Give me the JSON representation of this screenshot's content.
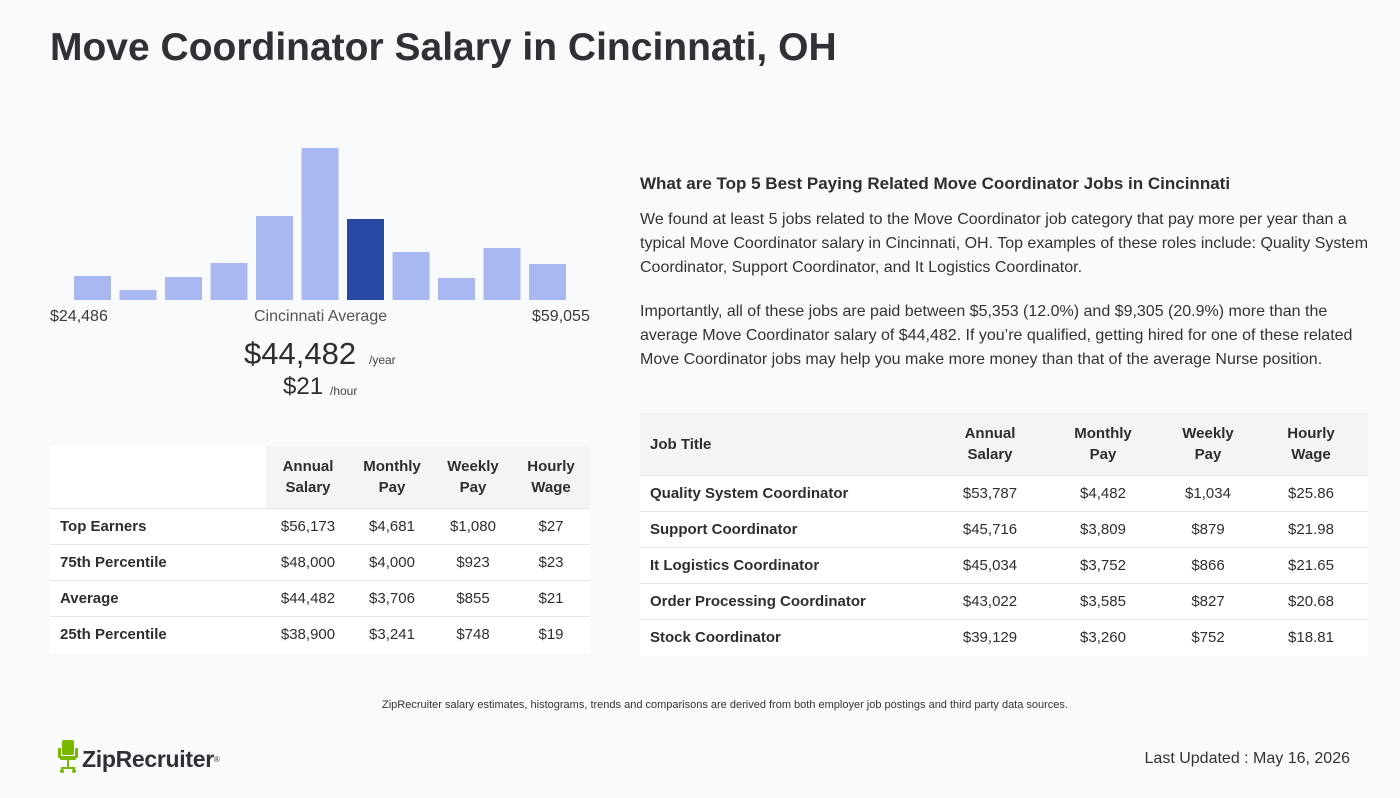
{
  "page": {
    "title": "Move Coordinator Salary in Cincinnati, OH"
  },
  "histogram": {
    "min_label": "$24,486",
    "max_label": "$59,055",
    "center_label": "Cincinnati Average",
    "avg_year": "$44,482",
    "avg_year_unit": "/year",
    "avg_hour": "$21",
    "avg_hour_unit": "/hour"
  },
  "chart_data": {
    "type": "bar",
    "categories": [
      "1",
      "2",
      "3",
      "4",
      "5",
      "6",
      "7",
      "8",
      "9",
      "10",
      "11"
    ],
    "values": [
      24,
      10,
      23,
      37,
      84,
      152,
      81,
      48,
      22,
      52,
      36
    ],
    "highlight_index": 6,
    "colors": {
      "bar": "#a9b8f1",
      "highlight": "#2749a4"
    },
    "xlabel": "",
    "ylabel": "",
    "grid": false
  },
  "percentile_table": {
    "headers": [
      [
        "Annual",
        "Salary"
      ],
      [
        "Monthly",
        "Pay"
      ],
      [
        "Weekly",
        "Pay"
      ],
      [
        "Hourly",
        "Wage"
      ]
    ],
    "rows": [
      {
        "label": "Top Earners",
        "annual": "$56,173",
        "monthly": "$4,681",
        "weekly": "$1,080",
        "hourly": "$27"
      },
      {
        "label": "75th Percentile",
        "annual": "$48,000",
        "monthly": "$4,000",
        "weekly": "$923",
        "hourly": "$23"
      },
      {
        "label": "Average",
        "annual": "$44,482",
        "monthly": "$3,706",
        "weekly": "$855",
        "hourly": "$21"
      },
      {
        "label": "25th Percentile",
        "annual": "$38,900",
        "monthly": "$3,241",
        "weekly": "$748",
        "hourly": "$19"
      }
    ]
  },
  "related": {
    "title": "What are Top 5 Best Paying Related Move Coordinator Jobs in Cincinnati",
    "paragraph1": "We found at least 5 jobs related to the Move Coordinator job category that pay more per year than a typical Move Coordinator salary in Cincinnati, OH. Top examples of these roles include: Quality System Coordinator, Support Coordinator, and It Logistics Coordinator.",
    "paragraph2": "Importantly, all of these jobs are paid between $5,353 (12.0%) and $9,305 (20.9%) more than the average Move Coordinator salary of $44,482. If you’re qualified, getting hired for one of these related Move Coordinator jobs may help you make more money than that of the average Nurse position."
  },
  "jobs_table": {
    "job_title_header": "Job Title",
    "headers": [
      [
        "Annual",
        "Salary"
      ],
      [
        "Monthly",
        "Pay"
      ],
      [
        "Weekly",
        "Pay"
      ],
      [
        "Hourly",
        "Wage"
      ]
    ],
    "rows": [
      {
        "title": "Quality System Coordinator",
        "annual": "$53,787",
        "monthly": "$4,482",
        "weekly": "$1,034",
        "hourly": "$25.86"
      },
      {
        "title": "Support Coordinator",
        "annual": "$45,716",
        "monthly": "$3,809",
        "weekly": "$879",
        "hourly": "$21.98"
      },
      {
        "title": "It Logistics Coordinator",
        "annual": "$45,034",
        "monthly": "$3,752",
        "weekly": "$866",
        "hourly": "$21.65"
      },
      {
        "title": "Order Processing Coordinator",
        "annual": "$43,022",
        "monthly": "$3,585",
        "weekly": "$827",
        "hourly": "$20.68"
      },
      {
        "title": "Stock Coordinator",
        "annual": "$39,129",
        "monthly": "$3,260",
        "weekly": "$752",
        "hourly": "$18.81"
      }
    ]
  },
  "footer": {
    "note": "ZipRecruiter salary estimates, histograms, trends and comparisons are derived from both employer job postings and third party data sources.",
    "logo_text": "ZipRecruiter",
    "logo_mark": "®",
    "logo_icon": "chair-icon",
    "brand_green": "#7ab800",
    "updated": "Last Updated : May 16, 2026"
  }
}
